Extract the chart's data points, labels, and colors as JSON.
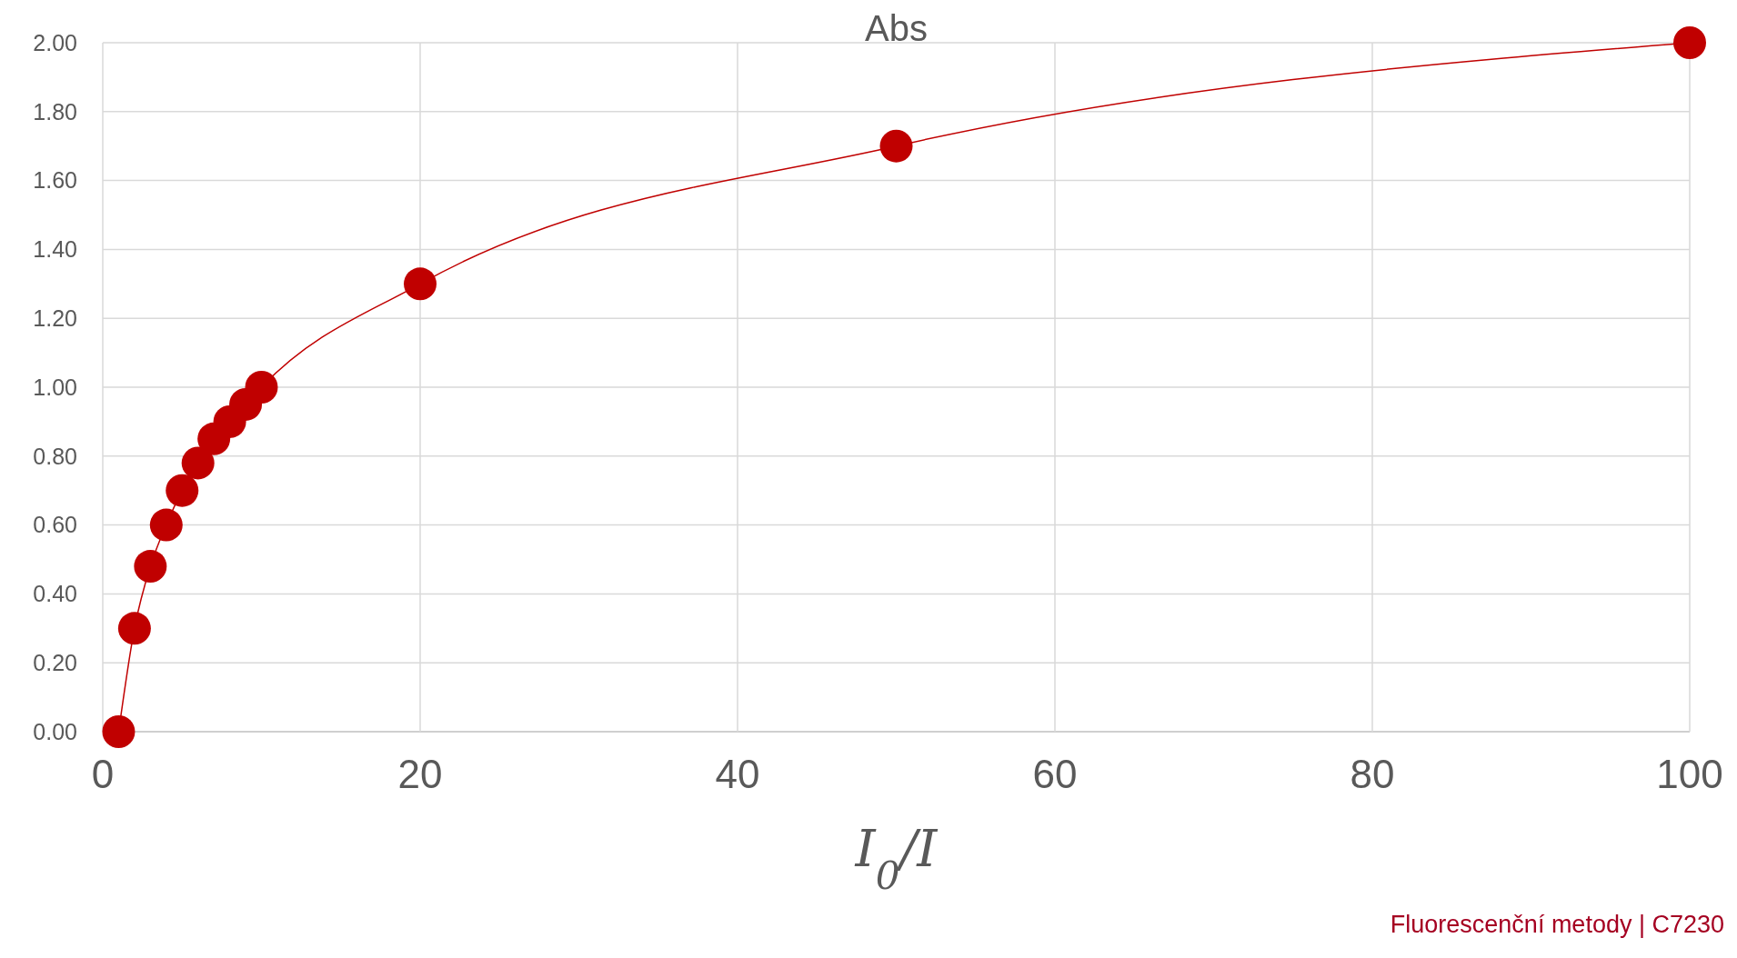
{
  "chart_data": {
    "type": "line",
    "title": "Abs",
    "xlabel": "I$_{0}$/I",
    "x": [
      1,
      2,
      3,
      4,
      5,
      6,
      7,
      8,
      9,
      10,
      20,
      50,
      100
    ],
    "series": [
      {
        "color": "#c00000",
        "values": [
          0,
          0.3,
          0.48,
          0.6,
          0.7,
          0.78,
          0.85,
          0.9,
          0.95,
          1.0,
          1.3,
          1.7,
          2.0
        ]
      }
    ],
    "xlim": [
      0,
      100
    ],
    "xticks": [
      0,
      20,
      40,
      60,
      80,
      100
    ],
    "ylim": [
      0,
      2
    ],
    "yticks": [
      {
        "value": 0,
        "label": "0.00"
      },
      {
        "value": 0.2,
        "label": "0.20"
      },
      {
        "value": 0.4,
        "label": "0.40"
      },
      {
        "value": 0.6,
        "label": "0.60"
      },
      {
        "value": 0.8,
        "label": "0.80"
      },
      {
        "value": 1,
        "label": "1.00"
      },
      {
        "value": 1.2,
        "label": "1.20"
      },
      {
        "value": 1.4,
        "label": "1.40"
      },
      {
        "value": 1.6,
        "label": "1.60"
      },
      {
        "value": 1.8,
        "label": "1.80"
      },
      {
        "value": 2,
        "label": "2.00"
      }
    ],
    "grid": true,
    "marker": "circle",
    "line_style": "solid",
    "annotations": [
      "Fluorescenční metody | C7230"
    ]
  }
}
